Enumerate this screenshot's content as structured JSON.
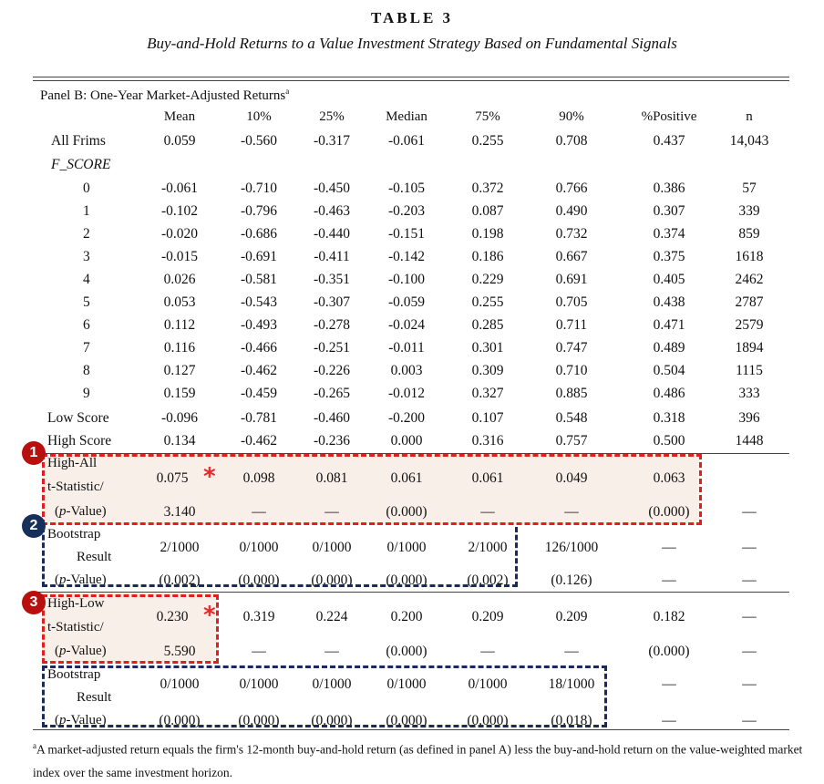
{
  "title": "TABLE 3",
  "subtitle": "Buy-and-Hold Returns to a Value Investment Strategy Based on Fundamental Signals",
  "panel_title": "Panel B: One-Year Market-Adjusted Returns",
  "panel_sup": "a",
  "columns": [
    "Mean",
    "10%",
    "25%",
    "Median",
    "75%",
    "90%",
    "%Positive",
    "n"
  ],
  "rows": [
    {
      "label": "All Frims",
      "values": [
        "0.059",
        "-0.560",
        "-0.317",
        "-0.061",
        "0.255",
        "0.708",
        "0.437",
        "14,043"
      ]
    },
    {
      "label": "F_SCORE",
      "values": []
    },
    {
      "label": "0",
      "values": [
        "-0.061",
        "-0.710",
        "-0.450",
        "-0.105",
        "0.372",
        "0.766",
        "0.386",
        "57"
      ]
    },
    {
      "label": "1",
      "values": [
        "-0.102",
        "-0.796",
        "-0.463",
        "-0.203",
        "0.087",
        "0.490",
        "0.307",
        "339"
      ]
    },
    {
      "label": "2",
      "values": [
        "-0.020",
        "-0.686",
        "-0.440",
        "-0.151",
        "0.198",
        "0.732",
        "0.374",
        "859"
      ]
    },
    {
      "label": "3",
      "values": [
        "-0.015",
        "-0.691",
        "-0.411",
        "-0.142",
        "0.186",
        "0.667",
        "0.375",
        "1618"
      ]
    },
    {
      "label": "4",
      "values": [
        "0.026",
        "-0.581",
        "-0.351",
        "-0.100",
        "0.229",
        "0.691",
        "0.405",
        "2462"
      ]
    },
    {
      "label": "5",
      "values": [
        "0.053",
        "-0.543",
        "-0.307",
        "-0.059",
        "0.255",
        "0.705",
        "0.438",
        "2787"
      ]
    },
    {
      "label": "6",
      "values": [
        "0.112",
        "-0.493",
        "-0.278",
        "-0.024",
        "0.285",
        "0.711",
        "0.471",
        "2579"
      ]
    },
    {
      "label": "7",
      "values": [
        "0.116",
        "-0.466",
        "-0.251",
        "-0.011",
        "0.301",
        "0.747",
        "0.489",
        "1894"
      ]
    },
    {
      "label": "8",
      "values": [
        "0.127",
        "-0.462",
        "-0.226",
        "0.003",
        "0.309",
        "0.710",
        "0.504",
        "1115"
      ]
    },
    {
      "label": "9",
      "values": [
        "0.159",
        "-0.459",
        "-0.265",
        "-0.012",
        "0.327",
        "0.885",
        "0.486",
        "333"
      ]
    },
    {
      "label": "Low Score",
      "values": [
        "-0.096",
        "-0.781",
        "-0.460",
        "-0.200",
        "0.107",
        "0.548",
        "0.318",
        "396"
      ]
    },
    {
      "label": "High Score",
      "values": [
        "0.134",
        "-0.462",
        "-0.236",
        "0.000",
        "0.316",
        "0.757",
        "0.500",
        "1448"
      ]
    }
  ],
  "high_all": {
    "label_lines": [
      "High-All",
      "t-Statistic/",
      "(p-Value)"
    ],
    "values": [
      "0.075",
      "0.098",
      "0.081",
      "0.061",
      "0.061",
      "0.049",
      "0.063",
      ""
    ],
    "stats": [
      "3.140",
      "—",
      "—",
      "(0.000)",
      "—",
      "—",
      "(0.000)",
      "—"
    ]
  },
  "bootstrap_1": {
    "label_lines": [
      "Bootstrap",
      "Result",
      "(p-Value)"
    ],
    "values": [
      "2/1000",
      "0/1000",
      "0/1000",
      "0/1000",
      "2/1000",
      "126/1000",
      "—",
      "—"
    ],
    "pvalues": [
      "(0.002)",
      "(0.000)",
      "(0.000)",
      "(0.000)",
      "(0.002)",
      "(0.126)",
      "—",
      "—"
    ]
  },
  "high_low": {
    "label_lines": [
      "High-Low",
      "t-Statistic/",
      "(p-Value)"
    ],
    "values": [
      "0.230",
      "0.319",
      "0.224",
      "0.200",
      "0.209",
      "0.209",
      "0.182",
      "—"
    ],
    "stats": [
      "5.590",
      "—",
      "—",
      "(0.000)",
      "—",
      "—",
      "(0.000)",
      "—"
    ]
  },
  "bootstrap_2": {
    "label_lines": [
      "Bootstrap",
      "Result",
      "(p-Value)"
    ],
    "values": [
      "0/1000",
      "0/1000",
      "0/1000",
      "0/1000",
      "0/1000",
      "18/1000",
      "—",
      "—"
    ],
    "pvalues": [
      "(0.000)",
      "(0.000)",
      "(0.000)",
      "(0.000)",
      "(0.000)",
      "(0.018)",
      "—",
      "—"
    ]
  },
  "badges": [
    "1",
    "2",
    "3"
  ],
  "star": "*",
  "footnote_sup": "a",
  "footnote": "A market-adjusted return equals the firm's 12-month buy-and-hold return (as defined in panel A) less the buy-and-hold return on the value-weighted market index over the same investment horizon.",
  "colors": {
    "red_box": "#e02020",
    "navy_box": "#1a2a5a",
    "badge_red": "#b80f0f",
    "badge_navy": "#16305c",
    "shade": "#f9efe9"
  }
}
